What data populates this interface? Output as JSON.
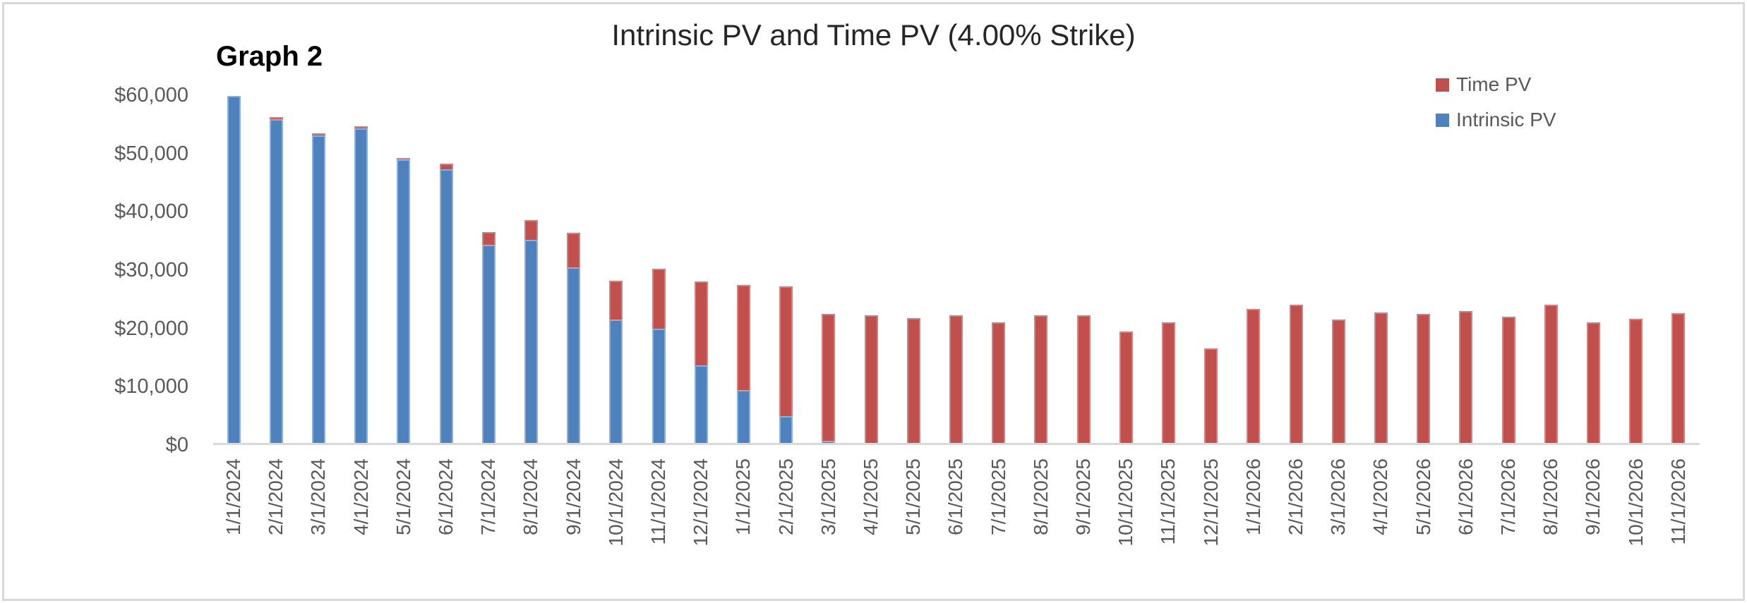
{
  "chart": {
    "graph_label": "Graph 2",
    "title": "Intrinsic PV and Time PV (4.00% Strike)",
    "legend": [
      {
        "label": "Time PV",
        "color": "#C0504D"
      },
      {
        "label": "Intrinsic PV",
        "color": "#4F81BD"
      }
    ]
  },
  "chart_data": {
    "type": "bar",
    "stacked": true,
    "title": "Intrinsic PV and Time PV (4.00% Strike)",
    "categories": [
      "1/1/2024",
      "2/1/2024",
      "3/1/2024",
      "4/1/2024",
      "5/1/2024",
      "6/1/2024",
      "7/1/2024",
      "8/1/2024",
      "9/1/2024",
      "10/1/2024",
      "11/1/2024",
      "12/1/2024",
      "1/1/2025",
      "2/1/2025",
      "3/1/2025",
      "4/1/2025",
      "5/1/2025",
      "6/1/2025",
      "7/1/2025",
      "8/1/2025",
      "9/1/2025",
      "10/1/2025",
      "11/1/2025",
      "12/1/2025",
      "1/1/2026",
      "2/1/2026",
      "3/1/2026",
      "4/1/2026",
      "5/1/2026",
      "6/1/2026",
      "7/1/2026",
      "8/1/2026",
      "9/1/2026",
      "10/1/2026",
      "11/1/2026"
    ],
    "series": [
      {
        "name": "Intrinsic PV",
        "color": "#4F81BD",
        "values": [
          59900,
          55900,
          53100,
          54300,
          49000,
          47300,
          34400,
          35200,
          30500,
          21500,
          20000,
          13700,
          9400,
          4900,
          700,
          0,
          0,
          0,
          0,
          0,
          0,
          0,
          0,
          0,
          0,
          0,
          0,
          0,
          0,
          0,
          0,
          0,
          0,
          0,
          0
        ]
      },
      {
        "name": "Time PV",
        "color": "#C0504D",
        "values": [
          0,
          400,
          400,
          400,
          300,
          1000,
          2200,
          3400,
          5900,
          6600,
          10300,
          14400,
          18000,
          22200,
          21800,
          22300,
          21800,
          22300,
          21000,
          22300,
          22200,
          19500,
          21000,
          16600,
          23300,
          24100,
          21500,
          22800,
          22500,
          23000,
          22000,
          24100,
          21000,
          21600,
          22600
        ]
      }
    ],
    "xlabel": "",
    "ylabel": "",
    "ylim": [
      0,
      60000
    ],
    "y_tick_step": 10000,
    "y_tick_labels": [
      "$0",
      "$10,000",
      "$20,000",
      "$30,000",
      "$40,000",
      "$50,000",
      "$60,000"
    ],
    "grid": false,
    "legend_position": "top-right"
  }
}
